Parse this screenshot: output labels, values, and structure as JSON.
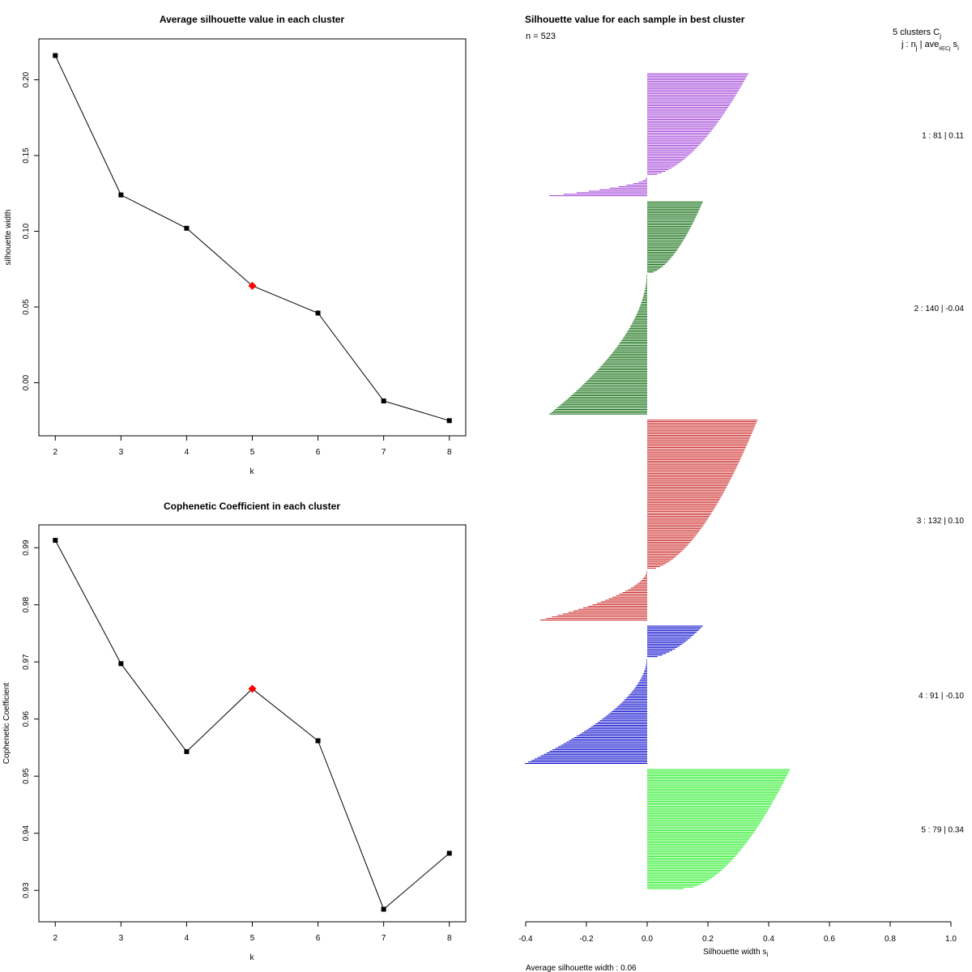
{
  "chart_data": [
    {
      "type": "line",
      "title": "Average silhouette value in each cluster",
      "xlabel": "k",
      "ylabel": "silhouette width",
      "x": [
        2,
        3,
        4,
        5,
        6,
        7,
        8
      ],
      "x_tick_labels": [
        "2",
        "3",
        "4",
        "5",
        "6",
        "7",
        "8"
      ],
      "y": [
        0.216,
        0.124,
        0.102,
        0.064,
        0.046,
        -0.012,
        -0.025
      ],
      "y_ticks": [
        0.0,
        0.05,
        0.1,
        0.15,
        0.2
      ],
      "y_tick_labels": [
        "0.00",
        "0.05",
        "0.10",
        "0.15",
        "0.20"
      ],
      "xlim": [
        1.75,
        8.25
      ],
      "ylim": [
        -0.035,
        0.227
      ],
      "highlight_k": 5,
      "line_color": "#000000",
      "highlight_color": "#ff0000"
    },
    {
      "type": "line",
      "title": "Cophenetic Coefficient in each cluster",
      "xlabel": "k",
      "ylabel": "Cophenetic Coefficient",
      "x": [
        2,
        3,
        4,
        5,
        6,
        7,
        8
      ],
      "x_tick_labels": [
        "2",
        "3",
        "4",
        "5",
        "6",
        "7",
        "8"
      ],
      "y": [
        0.9913,
        0.9697,
        0.9543,
        0.9653,
        0.9562,
        0.9267,
        0.9365
      ],
      "y_ticks": [
        0.93,
        0.94,
        0.95,
        0.96,
        0.97,
        0.98,
        0.99
      ],
      "y_tick_labels": [
        "0.93",
        "0.94",
        "0.95",
        "0.96",
        "0.97",
        "0.98",
        "0.99"
      ],
      "xlim": [
        1.75,
        8.25
      ],
      "ylim": [
        0.9245,
        0.994
      ],
      "highlight_k": 5,
      "line_color": "#000000",
      "highlight_color": "#ff0000"
    },
    {
      "type": "bar",
      "orientation": "horizontal",
      "title": "Silhouette value for each sample in best cluster",
      "n_label": "n = 523",
      "header_clusters": "5  clusters  C",
      "header_clusters_sub": "j",
      "header_columns": "j :  n",
      "header_columns_sub": "j",
      "header_columns_tail": " | ave",
      "header_columns_sub2": "i∈Cj",
      "header_columns_end": " s",
      "header_columns_sub3": "i",
      "xlabel": "Silhouette width s",
      "xlabel_sub": "i",
      "footer": "Average silhouette width :  0.06",
      "xlim": [
        -0.4,
        1.0
      ],
      "x_ticks": [
        -0.4,
        -0.2,
        0.0,
        0.2,
        0.4,
        0.6,
        0.8,
        1.0
      ],
      "x_tick_labels": [
        "-0.4",
        "-0.2",
        "0.0",
        "0.2",
        "0.4",
        "0.6",
        "0.8",
        "1.0"
      ],
      "total_n": 523,
      "clusters": [
        {
          "label": "1 :   81  |  0.11",
          "n": 81,
          "avg": 0.11,
          "color": "#a040d8",
          "max": 0.33,
          "min": -0.32,
          "n_neg": 13
        },
        {
          "label": "2 :   140  |  -0.04",
          "n": 140,
          "avg": -0.04,
          "color": "#006400",
          "max": 0.18,
          "min": -0.32,
          "n_neg": 92
        },
        {
          "label": "3 :   132  |  0.10",
          "n": 132,
          "avg": 0.1,
          "color": "#cc2222",
          "max": 0.36,
          "min": -0.35,
          "n_neg": 33
        },
        {
          "label": "4 :   91  |  -0.10",
          "n": 91,
          "avg": -0.1,
          "color": "#0000cc",
          "max": 0.18,
          "min": -0.4,
          "n_neg": 69
        },
        {
          "label": "5 :   79  |  0.34",
          "n": 79,
          "avg": 0.34,
          "color": "#22ee22",
          "max": 0.47,
          "min": 0.12,
          "n_neg": 0
        }
      ]
    }
  ]
}
